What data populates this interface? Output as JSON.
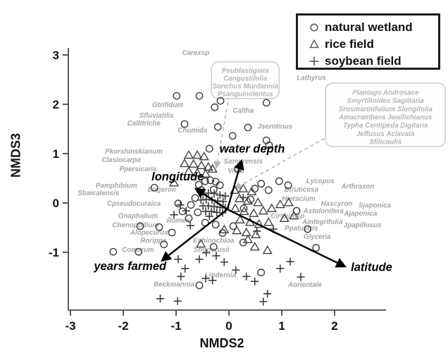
{
  "figure": {
    "background": "#ffffff"
  },
  "legend": {
    "items": [
      {
        "label": "natural wetland",
        "marker": "circle"
      },
      {
        "label": "rice field",
        "marker": "triangle"
      },
      {
        "label": "soybean field",
        "marker": "plus"
      }
    ]
  },
  "colors": {
    "marker": "#3c3c3c",
    "species_label": "#a4a4a4",
    "box_label": "#b4b4b4",
    "box_border": "#cccccc",
    "vector": "#000000",
    "dashed": "#b8b8b8",
    "axis": "#4a4a4a",
    "tick_text": "#111111"
  },
  "chart_data": {
    "type": "scatter",
    "title": "",
    "xlabel": "NMDS2",
    "ylabel": "NMDS3",
    "xlim": [
      -3.03,
      2.97
    ],
    "ylim": [
      -2.17,
      3.14
    ],
    "xticks": [
      -3,
      -2,
      -1,
      0,
      1,
      2
    ],
    "yticks": [
      -1,
      0,
      1,
      2,
      3
    ],
    "grid": false,
    "legend_position": "top-right",
    "series": [
      {
        "name": "natural wetland",
        "marker": "circle",
        "points": [
          [
            -0.99,
            2.17
          ],
          [
            -0.56,
            2.17
          ],
          [
            -0.16,
            2.07
          ],
          [
            -0.27,
            1.94
          ],
          [
            0.71,
            2.03
          ],
          [
            -0.84,
            1.6
          ],
          [
            -0.21,
            1.54
          ],
          [
            0.36,
            1.53
          ],
          [
            0.71,
            1.27
          ],
          [
            0.76,
            1.17
          ],
          [
            -0.37,
            1.1
          ],
          [
            0.07,
            1.36
          ],
          [
            -1.41,
            0.31
          ],
          [
            -0.57,
            0.37
          ],
          [
            -0.45,
            0.44
          ],
          [
            -0.35,
            0.46
          ],
          [
            -0.25,
            0.43
          ],
          [
            -0.17,
            0.36
          ],
          [
            -0.52,
            0.26
          ],
          [
            -0.29,
            0.27
          ],
          [
            -0.64,
            0.1
          ],
          [
            -0.72,
            -0.04
          ],
          [
            -0.59,
            -0.19
          ],
          [
            -0.76,
            -0.31
          ],
          [
            -0.45,
            -0.4
          ],
          [
            -0.25,
            -0.44
          ],
          [
            -0.88,
            -0.17
          ],
          [
            -0.96,
            -0.01
          ],
          [
            -1.68,
            -0.47
          ],
          [
            -1.32,
            -0.49
          ],
          [
            -1.23,
            -0.84
          ],
          [
            -1.71,
            -0.99
          ],
          [
            -2.19,
            -0.99
          ],
          [
            -1.08,
            -0.6
          ],
          [
            0.49,
            0.29
          ],
          [
            0.61,
            0.39
          ],
          [
            0.75,
            0.26
          ],
          [
            0.95,
            0.44
          ],
          [
            1.12,
            0.36
          ],
          [
            0.41,
            0.07
          ],
          [
            0.28,
            -0.11
          ],
          [
            0.08,
            -0.47
          ],
          [
            -0.29,
            -0.89
          ],
          [
            -0.12,
            -0.61
          ],
          [
            0.27,
            -0.8
          ],
          [
            0.61,
            -1.41
          ],
          [
            -0.56,
            -1.67
          ],
          [
            1.28,
            -0.16
          ],
          [
            1.49,
            -0.53
          ],
          [
            1.65,
            -0.91
          ],
          [
            0.17,
            0.69
          ]
        ]
      },
      {
        "name": "rice field",
        "marker": "triangle",
        "points": [
          [
            -0.76,
            0.97
          ],
          [
            -0.6,
            0.97
          ],
          [
            -0.47,
            0.94
          ],
          [
            -0.67,
            0.79
          ],
          [
            -0.52,
            0.76
          ],
          [
            -0.39,
            0.73
          ],
          [
            -0.76,
            0.64
          ],
          [
            -0.6,
            0.61
          ],
          [
            -0.44,
            0.59
          ],
          [
            -0.31,
            0.69
          ],
          [
            -0.84,
            0.8
          ],
          [
            -1.04,
            0.41
          ],
          [
            0.11,
            0.26
          ],
          [
            0.27,
            0.29
          ],
          [
            0.43,
            0.23
          ],
          [
            0.2,
            0.09
          ],
          [
            0.36,
            0.04
          ],
          [
            0.55,
            0.01
          ],
          [
            0.12,
            -0.11
          ],
          [
            0.29,
            -0.17
          ],
          [
            0.47,
            -0.21
          ],
          [
            0.65,
            -0.16
          ],
          [
            0.81,
            -0.11
          ],
          [
            0.97,
            -0.03
          ],
          [
            1.13,
            0.01
          ],
          [
            0.21,
            -0.34
          ],
          [
            0.4,
            -0.39
          ],
          [
            0.57,
            -0.43
          ],
          [
            0.75,
            -0.39
          ],
          [
            1.05,
            -0.31
          ],
          [
            1.23,
            -0.26
          ],
          [
            0.15,
            -0.56
          ],
          [
            0.33,
            -0.6
          ],
          [
            0.51,
            -0.64
          ],
          [
            -0.53,
            -0.83
          ],
          [
            -0.09,
            -0.54
          ],
          [
            0.49,
            -0.89
          ],
          [
            0.73,
            -0.96
          ],
          [
            0.36,
            -0.74
          ]
        ]
      },
      {
        "name": "soybean field",
        "marker": "plus",
        "points": [
          [
            -0.49,
            0.17
          ],
          [
            -0.39,
            0.2
          ],
          [
            -0.28,
            0.19
          ],
          [
            -0.17,
            0.16
          ],
          [
            -0.07,
            0.14
          ],
          [
            -0.53,
            0.06
          ],
          [
            -0.43,
            0.07
          ],
          [
            -0.32,
            0.06
          ],
          [
            -0.21,
            0.04
          ],
          [
            -0.11,
            0.03
          ],
          [
            -0.49,
            -0.06
          ],
          [
            -0.39,
            -0.06
          ],
          [
            -0.28,
            -0.07
          ],
          [
            -0.17,
            -0.09
          ],
          [
            -0.07,
            -0.1
          ],
          [
            -0.44,
            -0.17
          ],
          [
            -0.33,
            -0.17
          ],
          [
            -0.23,
            -0.19
          ],
          [
            -0.12,
            -0.2
          ],
          [
            -0.37,
            -0.27
          ],
          [
            -0.92,
            -0.04
          ],
          [
            -0.81,
            -0.16
          ],
          [
            -1.04,
            -0.24
          ],
          [
            -0.73,
            -0.46
          ],
          [
            0.27,
            0.11
          ],
          [
            0.53,
            -0.57
          ],
          [
            0.84,
            -0.53
          ],
          [
            -0.96,
            -1.14
          ],
          [
            -0.83,
            -1.33
          ],
          [
            -0.91,
            -1.49
          ],
          [
            -0.56,
            -1.14
          ],
          [
            -0.43,
            -1.01
          ],
          [
            -0.24,
            -1.07
          ],
          [
            -0.09,
            -1.2
          ],
          [
            -0.44,
            -1.53
          ],
          [
            -0.31,
            -1.57
          ],
          [
            -1.3,
            -1.94
          ],
          [
            -0.97,
            -1.99
          ],
          [
            0.13,
            -1.36
          ],
          [
            0.33,
            -1.49
          ],
          [
            0.49,
            -1.59
          ],
          [
            0.73,
            -1.84
          ],
          [
            0.65,
            -2.0
          ],
          [
            0.97,
            -1.33
          ],
          [
            1.16,
            -1.19
          ],
          [
            1.36,
            -1.5
          ]
        ]
      }
    ],
    "env_vectors": [
      {
        "label": "water depth",
        "from": [
          -0.03,
          -0.13
        ],
        "to": [
          0.24,
          0.86
        ],
        "label_at": [
          0.44,
          1.02
        ]
      },
      {
        "label": "longitude",
        "from": [
          -0.03,
          -0.13
        ],
        "to": [
          -0.63,
          0.29
        ],
        "label_at": [
          -0.97,
          0.46
        ]
      },
      {
        "label": "years farmed",
        "from": [
          -0.03,
          -0.13
        ],
        "to": [
          -1.27,
          -1.17
        ],
        "label_at": [
          -1.87,
          -1.36
        ]
      },
      {
        "label": "latitude",
        "from": [
          -0.03,
          -0.13
        ],
        "to": [
          2.2,
          -1.29
        ],
        "label_at": [
          2.7,
          -1.38
        ]
      }
    ],
    "species_labels": [
      {
        "text": "Carexsp",
        "at": [
          -0.63,
          3.0
        ]
      },
      {
        "text": "Gtrifidum",
        "at": [
          -1.16,
          1.94
        ]
      },
      {
        "text": "Sfluviatilis",
        "at": [
          -1.37,
          1.73
        ]
      },
      {
        "text": "Callitriche",
        "at": [
          -1.61,
          1.57
        ]
      },
      {
        "text": "Chumida",
        "at": [
          -0.69,
          1.43
        ]
      },
      {
        "text": "Caltha",
        "at": [
          0.27,
          1.83
        ]
      },
      {
        "text": "Jserotinus",
        "at": [
          0.87,
          1.51
        ]
      },
      {
        "text": "Lathyrus",
        "at": [
          1.56,
          2.49
        ]
      },
      {
        "text": "Pkorshinskianum",
        "at": [
          -1.8,
          1.0
        ]
      },
      {
        "text": "Clasiocarpa",
        "at": [
          -2.04,
          0.83
        ]
      },
      {
        "text": "Ppersicaria",
        "at": [
          -1.72,
          0.64
        ]
      },
      {
        "text": "Pamphibium",
        "at": [
          -2.13,
          0.31
        ]
      },
      {
        "text": "Sbaicalensis",
        "at": [
          -2.47,
          0.16
        ]
      },
      {
        "text": "Erigeron",
        "at": [
          -1.27,
          0.23
        ]
      },
      {
        "text": "Cpseudocuraica",
        "at": [
          -1.8,
          -0.06
        ]
      },
      {
        "text": "Gnaphalium",
        "at": [
          -1.72,
          -0.31
        ]
      },
      {
        "text": "Chenopodium",
        "at": [
          -1.77,
          -0.49
        ]
      },
      {
        "text": "Rumex",
        "at": [
          -0.96,
          -0.4
        ]
      },
      {
        "text": "Alopecurus",
        "at": [
          -1.51,
          -0.64
        ]
      },
      {
        "text": "Rorippa",
        "at": [
          -1.43,
          -0.81
        ]
      },
      {
        "text": "Comarum",
        "at": [
          -1.72,
          -0.99
        ]
      },
      {
        "text": "Beckmannia",
        "at": [
          -1.04,
          -1.69
        ]
      },
      {
        "text": "Echinochloa",
        "at": [
          -0.29,
          -0.81
        ]
      },
      {
        "text": "Sfloderusii",
        "at": [
          -0.33,
          -0.99
        ]
      },
      {
        "text": "Lindernia",
        "at": [
          -0.16,
          -1.51
        ]
      },
      {
        "text": "Aorientale",
        "at": [
          1.44,
          -1.7
        ]
      },
      {
        "text": "Samurensis",
        "at": [
          0.27,
          0.8
        ]
      },
      {
        "text": "Viola",
        "at": [
          0.13,
          0.61
        ]
      },
      {
        "text": "Lycopus",
        "at": [
          1.73,
          0.4
        ]
      },
      {
        "text": "Arthraxon",
        "at": [
          2.44,
          0.29
        ]
      },
      {
        "text": "Bfruticosa",
        "at": [
          1.37,
          0.23
        ]
      },
      {
        "text": "Hieracium",
        "at": [
          1.32,
          0.04
        ]
      },
      {
        "text": "Hascyron",
        "at": [
          2.04,
          -0.06
        ]
      },
      {
        "text": "Sjaponica",
        "at": [
          2.76,
          -0.09
        ]
      },
      {
        "text": "Astolonifera",
        "at": [
          1.79,
          -0.21
        ]
      },
      {
        "text": "Ajaponica",
        "at": [
          2.49,
          -0.26
        ]
      },
      {
        "text": "Cirsiumsp",
        "at": [
          1.11,
          -0.31
        ]
      },
      {
        "text": "Aintegrifolia",
        "at": [
          1.77,
          -0.43
        ]
      },
      {
        "text": "Jpapillosus",
        "at": [
          2.53,
          -0.49
        ]
      },
      {
        "text": "Ppalustris",
        "at": [
          1.37,
          -0.56
        ]
      },
      {
        "text": "Glyceria",
        "at": [
          1.67,
          -0.73
        ]
      }
    ],
    "callout_boxes": [
      {
        "top_left": [
          -0.33,
          2.86
        ],
        "lines": [
          "Psubfastigiata",
          "Cangustifolia",
          "Sonchus  Murdannia",
          "Psanguinolentus"
        ]
      },
      {
        "top_left": [
          1.83,
          2.43
        ],
        "lines": [
          "Plantago      Androsace",
          "Smyrtilloides  Sagittaria",
          "Srosmarinifolium  Slongifolia",
          "Amacranthera Jwallichianus",
          "Typha Centipeda   Digitaria",
          "Jeffusus            Aclavata",
          "Sfilicaulis"
        ]
      }
    ],
    "dashed_arrows": [
      {
        "from": [
          0.0,
          2.16
        ],
        "to": [
          -0.24,
          0.71
        ]
      },
      {
        "from": [
          1.91,
          1.37
        ],
        "to": [
          0.11,
          0.29
        ]
      }
    ]
  }
}
